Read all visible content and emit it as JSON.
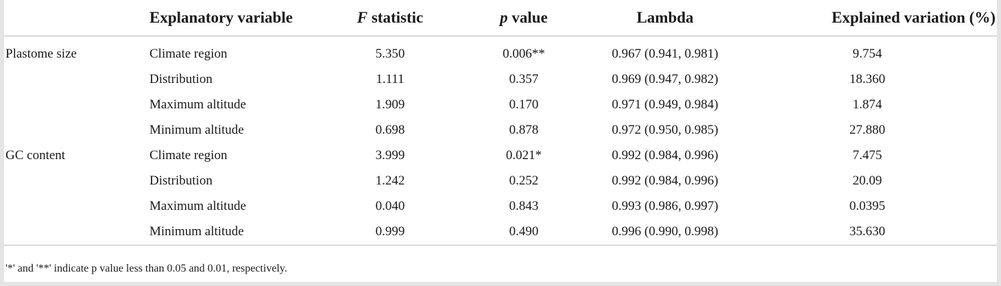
{
  "header": {
    "col0": "",
    "col1": "Explanatory variable",
    "col2_italic": "F",
    "col2_rest": " statistic",
    "col3_italic": "p",
    "col3_rest": " value",
    "col4": "Lambda",
    "col5": "Explained variation (%)"
  },
  "rows": [
    {
      "group": "Plastome size",
      "variable": "Climate region",
      "f": "5.350",
      "p": "0.006**",
      "lambda": "0.967 (0.941, 0.981)",
      "explained": "9.754"
    },
    {
      "group": "",
      "variable": "Distribution",
      "f": "1.111",
      "p": "0.357",
      "lambda": "0.969 (0.947, 0.982)",
      "explained": "18.360"
    },
    {
      "group": "",
      "variable": "Maximum altitude",
      "f": "1.909",
      "p": "0.170",
      "lambda": "0.971 (0.949, 0.984)",
      "explained": "1.874"
    },
    {
      "group": "",
      "variable": "Minimum altitude",
      "f": "0.698",
      "p": "0.878",
      "lambda": "0.972 (0.950, 0.985)",
      "explained": "27.880"
    },
    {
      "group": "GC content",
      "variable": "Climate region",
      "f": "3.999",
      "p": "0.021*",
      "lambda": "0.992 (0.984, 0.996)",
      "explained": "7.475"
    },
    {
      "group": "",
      "variable": "Distribution",
      "f": "1.242",
      "p": "0.252",
      "lambda": "0.992 (0.984, 0.996)",
      "explained": "20.09"
    },
    {
      "group": "",
      "variable": "Maximum altitude",
      "f": "0.040",
      "p": "0.843",
      "lambda": "0.993 (0.986, 0.997)",
      "explained": "0.0395"
    },
    {
      "group": "",
      "variable": "Minimum altitude",
      "f": "0.999",
      "p": "0.490",
      "lambda": "0.996 (0.990, 0.998)",
      "explained": "35.630"
    }
  ],
  "footnote": "'*' and '**' indicate p value less than 0.05 and 0.01, respectively."
}
